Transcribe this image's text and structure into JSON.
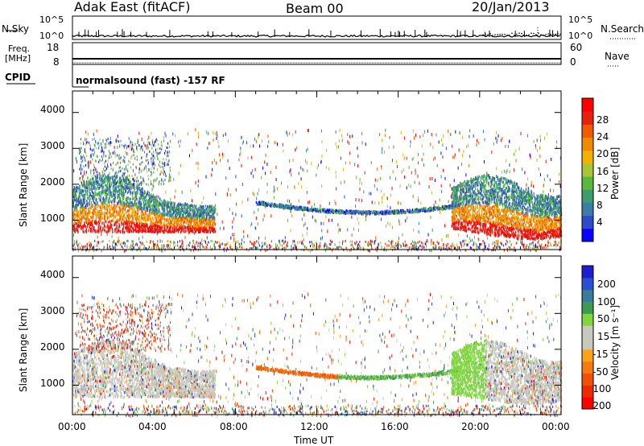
{
  "header": {
    "station": "Adak East (fitACF)",
    "beam": "Beam 00",
    "date": "20/Jan/2013"
  },
  "nsky": {
    "label": "N.Sky",
    "ticks": [
      "10^5",
      "10^0"
    ],
    "right_ticks": [
      "10^5",
      "10^0"
    ],
    "right_label": "N.Search"
  },
  "freq": {
    "label1": "Freq.",
    "label2": "[MHz]",
    "ticks": [
      "18",
      "8"
    ],
    "right_ticks": [
      "60",
      "0"
    ],
    "right_label": "Nave"
  },
  "cpid": {
    "label": "CPID",
    "text": "normalsound (fast) -157 RF"
  },
  "chart_data": [
    {
      "type": "heatmap",
      "title": "",
      "xlabel": "Time UT",
      "ylabel": "Slant Range [km]",
      "x_ticks": [
        "00:00",
        "04:00",
        "08:00",
        "12:00",
        "16:00",
        "20:00",
        "00:00"
      ],
      "y_ticks": [
        "1000",
        "2000",
        "3000",
        "4000"
      ],
      "ylim": [
        180,
        4600
      ],
      "colorbar": {
        "label": "Power [dB]",
        "ticks": [
          "4",
          "8",
          "12",
          "16",
          "20",
          "24",
          "28"
        ],
        "colors": [
          "#0a00ff",
          "#2f4bc9",
          "#3a7fa3",
          "#3c9c6e",
          "#5cb83b",
          "#a8c43a",
          "#f0b200",
          "#f08a00",
          "#f05a00",
          "#e8200e",
          "#ff0000"
        ]
      }
    },
    {
      "type": "heatmap",
      "title": "",
      "xlabel": "Time UT",
      "ylabel": "Slant Range [km]",
      "x_ticks": [
        "00:00",
        "04:00",
        "08:00",
        "12:00",
        "16:00",
        "20:00",
        "00:00"
      ],
      "y_ticks": [
        "1000",
        "2000",
        "3000",
        "4000"
      ],
      "ylim": [
        180,
        4600
      ],
      "colorbar": {
        "label": "Velocity [m s⁻¹]",
        "ticks": [
          "200",
          "100",
          "50",
          "15",
          "-15",
          "-50",
          "-100",
          "-200"
        ],
        "colors": [
          "#1e1ecf",
          "#2a4fd0",
          "#3a7a9a",
          "#3d9a55",
          "#7fd641",
          "#c8c8be",
          "#c8c8be",
          "#f7a41b",
          "#f57a11",
          "#f05008",
          "#ee2a00",
          "#ff0000"
        ]
      }
    }
  ],
  "xaxis": {
    "title": "Time UT"
  }
}
